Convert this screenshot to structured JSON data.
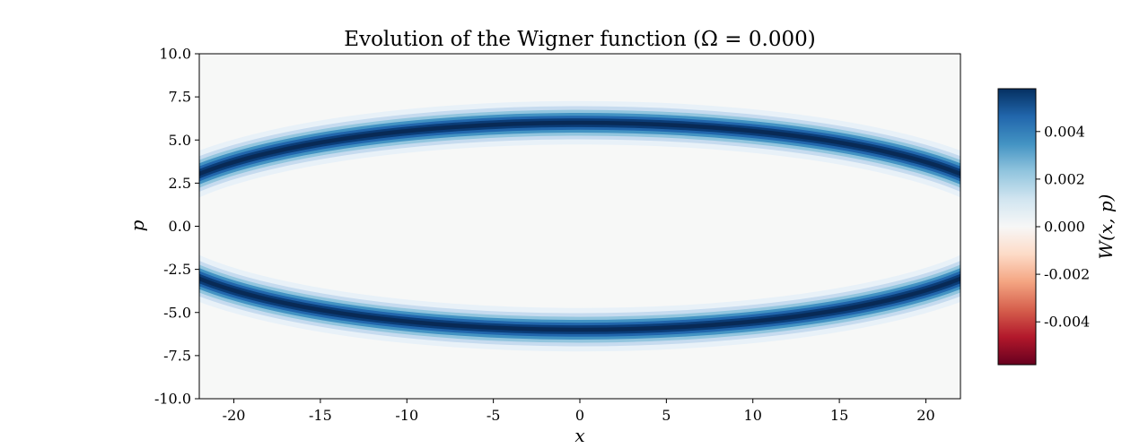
{
  "chart_data": {
    "type": "heatmap",
    "title": "Evolution of the Wigner function (Ω = 0.000)",
    "xlabel": "x",
    "ylabel": "p",
    "xlim": [
      -22,
      22
    ],
    "ylim": [
      -10,
      10
    ],
    "x_ticks": [
      -20,
      -15,
      -10,
      -5,
      0,
      5,
      10,
      15,
      20
    ],
    "x_tick_labels": [
      "-20",
      "-15",
      "-10",
      "-5",
      "0",
      "5",
      "10",
      "15",
      "20"
    ],
    "y_ticks": [
      10,
      7.5,
      5,
      2.5,
      0,
      -2.5,
      -5,
      -7.5,
      -10
    ],
    "y_tick_labels": [
      "10.0",
      "7.5",
      "5.0",
      "2.5",
      "0.0",
      "-2.5",
      "-5.0",
      "-7.5",
      "-10.0"
    ],
    "colorbar": {
      "label": "W(x, p)",
      "colormap": "RdBu",
      "vmin": -0.0058,
      "vmax": 0.0058,
      "ticks": [
        0.004,
        0.002,
        0.0,
        -0.002,
        -0.004
      ],
      "tick_labels": [
        "0.004",
        "0.002",
        "0.000",
        "-0.002",
        "-0.004"
      ]
    },
    "feature": {
      "description_shape": "ellipse",
      "semi_axis_x": 25.5,
      "semi_axis_p": 6.0,
      "band_width_p": 0.6,
      "peak_value": 0.0055
    },
    "colors": {
      "background": "#f7f8f7",
      "peak": "#08306b",
      "mid_blue": "#2d73b3",
      "negative": "#67001f"
    }
  }
}
